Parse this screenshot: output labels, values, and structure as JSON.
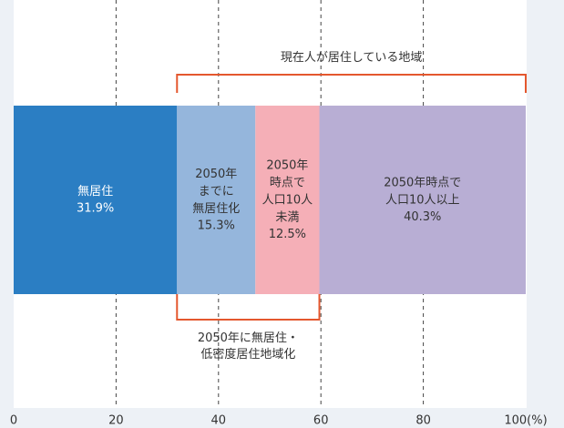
{
  "chart_data": {
    "type": "stacked-hbar",
    "categories": [
      null
    ],
    "series": [
      {
        "name": "無居住",
        "color": "#2b7ec3",
        "values": [
          31.9
        ],
        "value_labels": [
          "31.9%"
        ]
      },
      {
        "name": "2050年\nまでに\n無居住化",
        "color": "#95b6dc",
        "values": [
          15.3
        ],
        "value_labels": [
          "15.3%"
        ]
      },
      {
        "name": "2050年\n時点で\n人口10人\n未満",
        "color": "#f5afb7",
        "values": [
          12.5
        ],
        "value_labels": [
          "12.5%"
        ]
      },
      {
        "name": "2050年時点で\n人口10人以上",
        "color": "#b8aed4",
        "values": [
          40.3
        ],
        "value_labels": [
          "40.3%"
        ]
      }
    ],
    "annotations": [
      {
        "text": "現在人が居住している地域",
        "color": "#e4572e"
      },
      {
        "text": "2050年に無居住・\n低密度居住地域化",
        "color": "#e4572e"
      }
    ],
    "xlim": [
      0,
      100
    ],
    "xticks": [
      0,
      20,
      40,
      60,
      80,
      {
        "value": 100,
        "label": "100(%)"
      }
    ],
    "grid": true
  }
}
